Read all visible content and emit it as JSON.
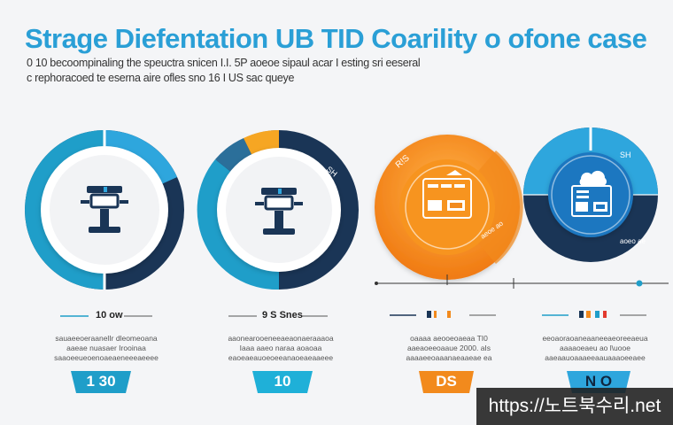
{
  "header": {
    "title": "Strage Diefentation UB TID Coarility o ofone case",
    "subtitle_line1": "0 10 becoompinaling  the speuctra snicen  I.I. 5P  aoeoe  sipaul acar  I esting  sri eeseral",
    "subtitle_line2": "c  rephoracoed  te eserna aire  ofles  sno  16  I US   sac queye"
  },
  "colors": {
    "teal": "#1f9ec9",
    "navy": "#1a3556",
    "orange": "#f28a1d",
    "amber": "#f6a623",
    "sky": "#2ea6dd",
    "blue": "#1e77c0"
  },
  "panels": [
    {
      "icon": "server-stand-icon",
      "label": "10 ow",
      "desc": [
        "sauaeeoeraanelIr dleomeoana",
        "aaeae nuasaer  Irooinaa",
        "saaoeeueoenoaeaeneeeaeeee"
      ],
      "badge": "1 30"
    },
    {
      "icon": "server-stand-icon",
      "label": "9 S Snes",
      "desc": [
        "aaonearooeneeaeaonaeraaaoa",
        "Iaaa  aaeo  naraa  aoaoaa",
        "eaoeaeauoeoeeanaoeaeaaeee"
      ],
      "badge": "10"
    },
    {
      "icon": "storage-rack-icon",
      "label": "",
      "desc": [
        "oaaaa  aeooeoaeaa  TI0",
        "aaeaoeeoaaue 2000. aIs",
        "aaaaeeoaaanaeaaeae ea"
      ],
      "badge": "DS"
    },
    {
      "icon": "cloud-rack-icon",
      "label": "",
      "desc": [
        "eeoaoraoaneaaneeaeoreeaeua",
        "aaaaoeaeu  ao  l\\uooe",
        "aaeaauoaaaeeaauaaaoeeaee"
      ],
      "badge": "N O"
    }
  ],
  "watermark": "https://노트북수리.net"
}
